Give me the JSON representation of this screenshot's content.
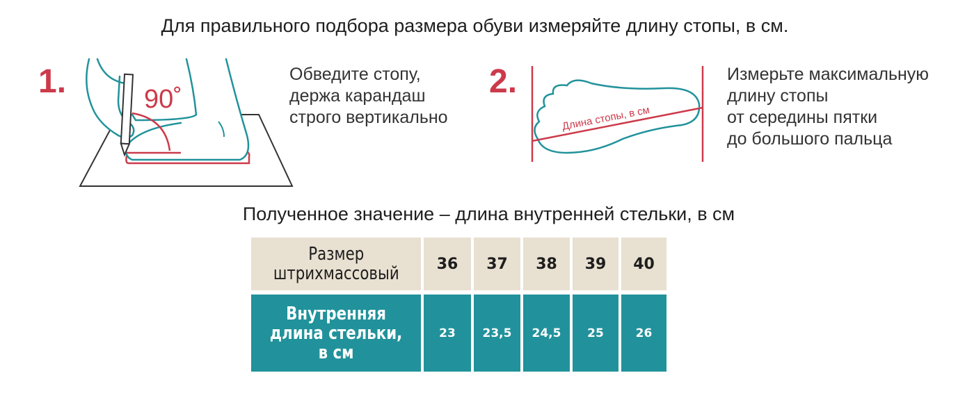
{
  "title": "Для правильного подбора размера обуви измеряйте длину стопы, в см.",
  "steps": [
    {
      "number": "1.",
      "lines": [
        "Обведите стопу,",
        "держа карандаш",
        "строго вертикально"
      ],
      "angle_label": "90˚"
    },
    {
      "number": "2.",
      "lines": [
        "Измерьте максимальную",
        "длину стопы",
        "от середины пятки",
        "до большого пальца"
      ],
      "measure_label": "Длина стопы, в см"
    }
  ],
  "subtitle": "Полученное значение – длина внутренней стельки, в см",
  "table": {
    "row_headers": [
      {
        "lines": [
          "Размер",
          "штрихмассовый"
        ]
      },
      {
        "lines": [
          "Внутренняя",
          "длина стельки,",
          "в см"
        ]
      }
    ],
    "sizes": [
      "36",
      "37",
      "38",
      "39",
      "40"
    ],
    "insole_lengths": [
      "23",
      "23,5",
      "24,5",
      "25",
      "26"
    ]
  },
  "colors": {
    "accent_red": "#cc3a4a",
    "teal": "#21929b",
    "beige": "#e8e0d1"
  }
}
